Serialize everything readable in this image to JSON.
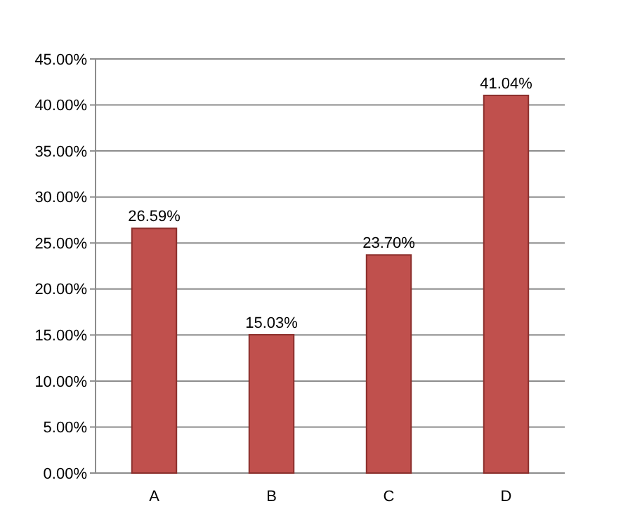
{
  "chart_data": {
    "type": "bar",
    "categories": [
      "A",
      "B",
      "C",
      "D"
    ],
    "values": [
      26.59,
      15.03,
      23.7,
      41.04
    ],
    "color": "#c0504d",
    "value_labels": [
      "26.59%",
      "15.03%",
      "23.70%",
      "41.04%"
    ],
    "ylim": [
      0,
      45
    ],
    "yticks": [
      {
        "value": 0,
        "label": "0.00%"
      },
      {
        "value": 5,
        "label": "5.00%"
      },
      {
        "value": 10,
        "label": "10.00%"
      },
      {
        "value": 15,
        "label": "15.00%"
      },
      {
        "value": 20,
        "label": "20.00%"
      },
      {
        "value": 25,
        "label": "25.00%"
      },
      {
        "value": 30,
        "label": "30.00%"
      },
      {
        "value": 35,
        "label": "35.00%"
      },
      {
        "value": 40,
        "label": "40.00%"
      },
      {
        "value": 45,
        "label": "45.00%"
      }
    ],
    "grid": "y"
  }
}
